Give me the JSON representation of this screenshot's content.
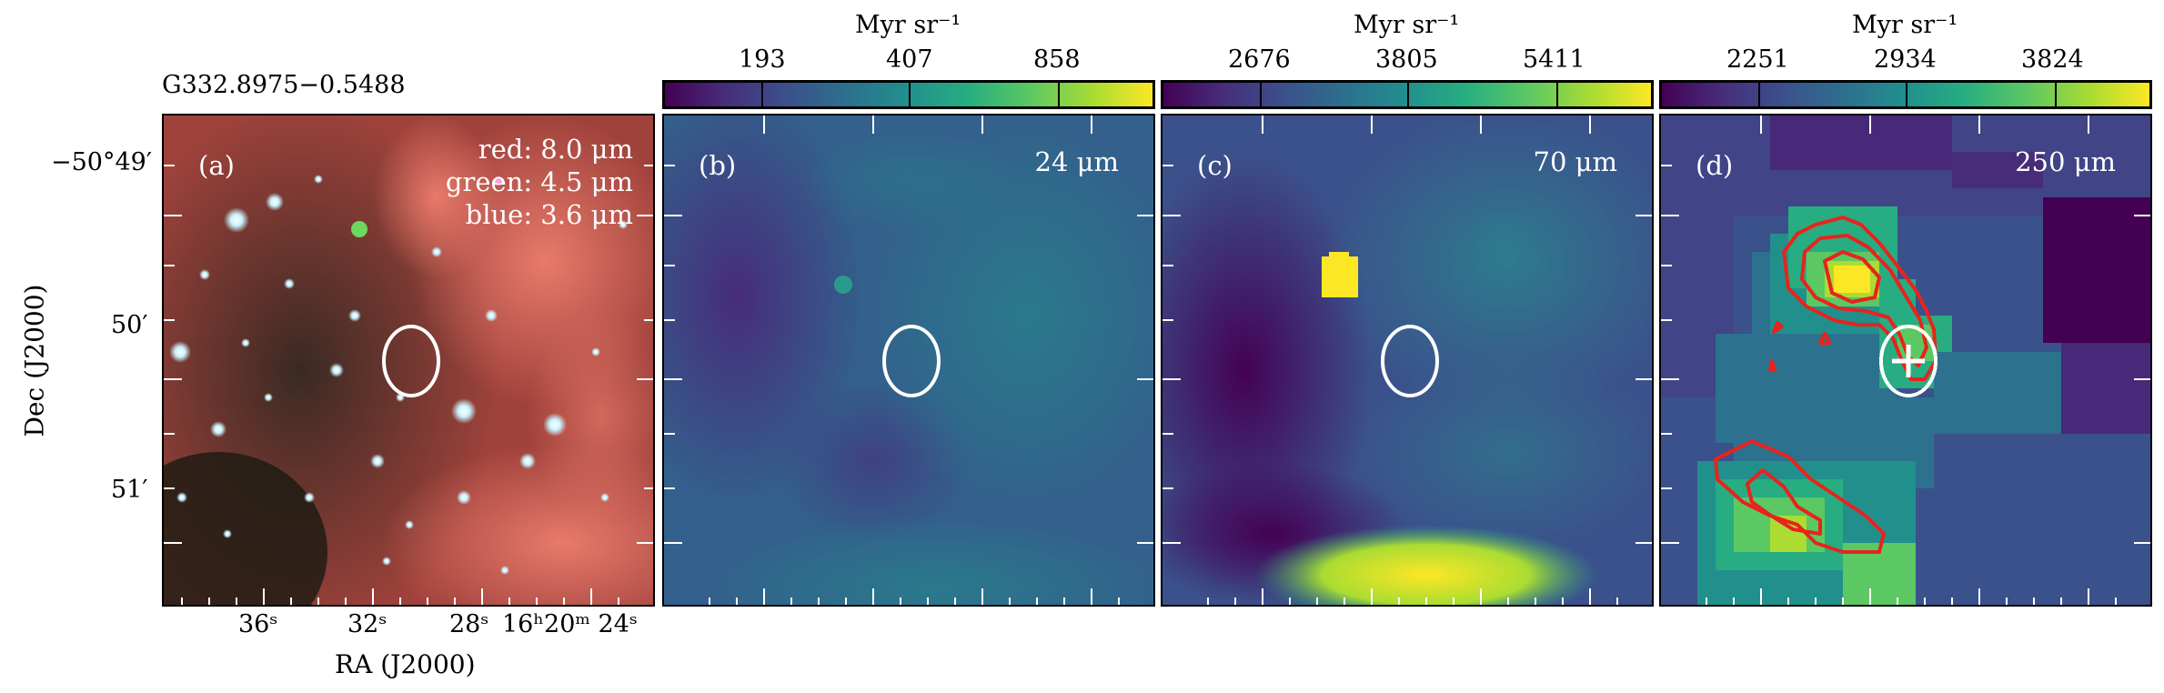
{
  "figure": {
    "source_name": "G332.8975−0.5488",
    "ylabel": "Dec (J2000)",
    "xlabel": "RA (J2000)",
    "y_ticks": [
      "−50°49′",
      "50′",
      "51′"
    ],
    "x_ticks": [
      "36ˢ",
      "32ˢ",
      "28ˢ",
      "16ʰ20ᵐ 24ˢ"
    ]
  },
  "panels": [
    {
      "id": "a",
      "label": "(a)",
      "legend": [
        "red: 8.0 μm",
        "green: 4.5 μm",
        "blue: 3.6 μm"
      ]
    },
    {
      "id": "b",
      "label": "(b)",
      "band": "24 μm",
      "unit": "Myr sr⁻¹",
      "cbar_ticks": [
        "193",
        "407",
        "858"
      ]
    },
    {
      "id": "c",
      "label": "(c)",
      "band": "70 μm",
      "unit": "Myr sr⁻¹",
      "cbar_ticks": [
        "2676",
        "3805",
        "5411"
      ]
    },
    {
      "id": "d",
      "label": "(d)",
      "band": "250 μm",
      "unit": "Myr sr⁻¹",
      "cbar_ticks": [
        "2251",
        "2934",
        "3824"
      ]
    }
  ],
  "colors": {
    "ellipse": "#ffffff",
    "contour": "#e8231d",
    "colormap": "viridis"
  }
}
